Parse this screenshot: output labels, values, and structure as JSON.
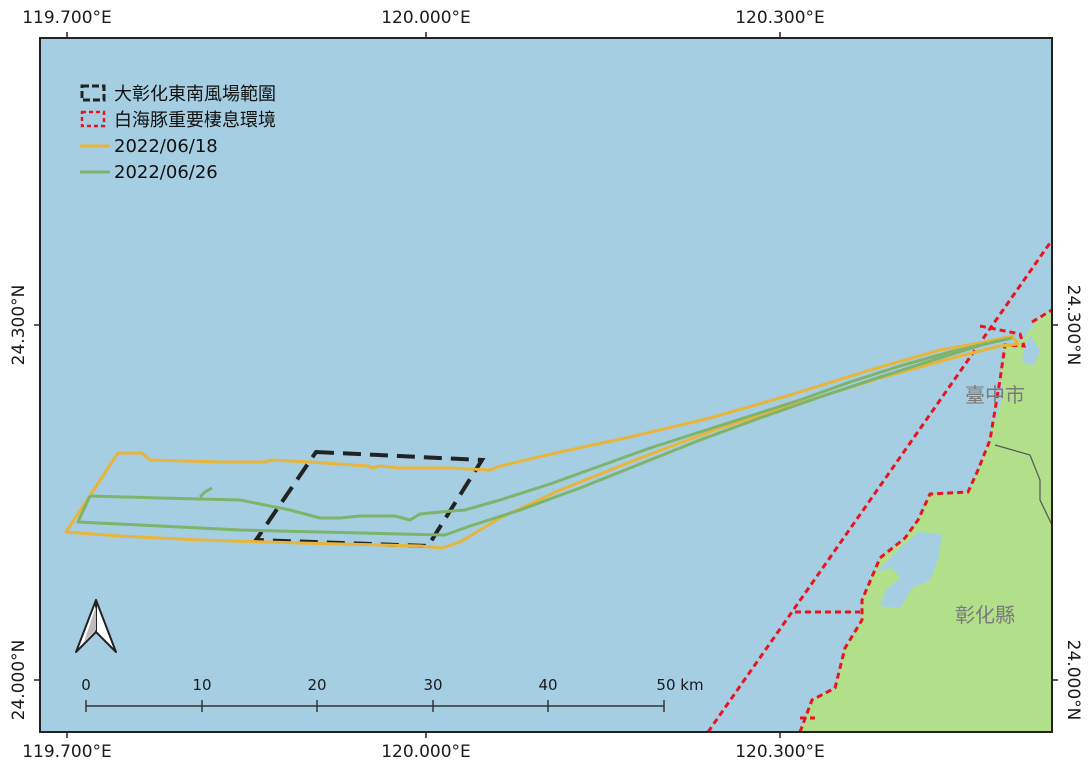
{
  "map": {
    "top_labels": [
      "119.700°E",
      "120.000°E",
      "120.300°E"
    ],
    "bottom_labels": [
      "119.700°E",
      "120.000°E",
      "120.300°E"
    ],
    "left_labels": [
      "24.300°N",
      "24.000°N"
    ],
    "right_labels": [
      "24.300°N",
      "24.000°N"
    ]
  },
  "legend": [
    {
      "label": "大彰化東南風場範圍",
      "color": "#222222",
      "style": "dashed-box"
    },
    {
      "label": "白海豚重要棲息環境",
      "color": "#e8141e",
      "style": "dotted-box"
    },
    {
      "label": "2022/06/18",
      "color": "#e8b53a",
      "style": "line"
    },
    {
      "label": "2022/06/26",
      "color": "#7db36a",
      "style": "line"
    }
  ],
  "places": [
    "臺中市",
    "彰化縣"
  ],
  "scale_bar": {
    "labels": [
      "0",
      "10",
      "20",
      "30",
      "40",
      "50 km"
    ]
  },
  "north_arrow": {
    "icon": "north-arrow-icon"
  },
  "colors": {
    "sea": "#a6cee3",
    "land": "#b2df8a",
    "river": "#a6cee3",
    "wind_farm": "#222222",
    "habitat": "#e8141e",
    "track_0618": "#e8b53a",
    "track_0626": "#7db36a"
  }
}
